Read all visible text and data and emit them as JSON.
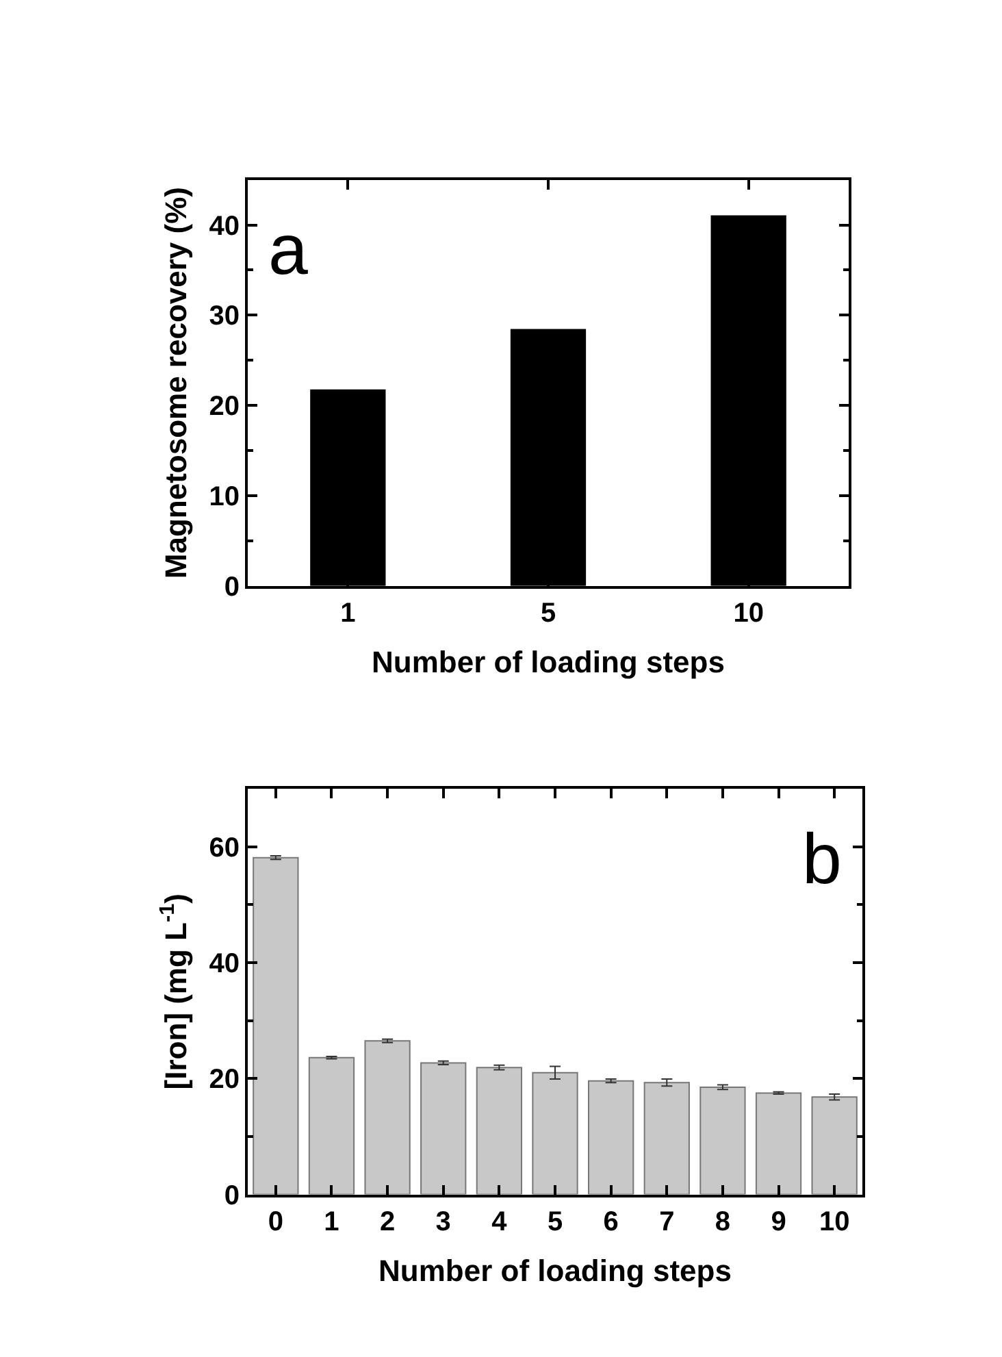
{
  "chart_data": [
    {
      "type": "bar",
      "categories": [
        "1",
        "5",
        "10"
      ],
      "xlabel": "Number of loading steps",
      "ylabel": "Magnetosome recovery (%)",
      "series": [
        {
          "color": "#000000",
          "values": [
            21.7,
            28.4,
            41.0
          ]
        }
      ],
      "ylim": [
        0,
        45
      ],
      "yticks": [
        0,
        10,
        20,
        30,
        40
      ],
      "annotations": [
        "a"
      ]
    },
    {
      "type": "bar",
      "categories": [
        "0",
        "1",
        "2",
        "3",
        "4",
        "5",
        "6",
        "7",
        "8",
        "9",
        "10"
      ],
      "xlabel": "Number of loading steps",
      "ylabel": "[Iron] (mg L$^{-1}$)",
      "series": [
        {
          "color": "#c8c8c8",
          "values": [
            58.1,
            23.6,
            26.5,
            22.7,
            21.9,
            21.0,
            19.6,
            19.3,
            18.5,
            17.5,
            16.8
          ],
          "errors": [
            0.3,
            0.2,
            0.3,
            0.3,
            0.4,
            1.1,
            0.3,
            0.6,
            0.4,
            0.2,
            0.5
          ]
        }
      ],
      "ylim": [
        0,
        70
      ],
      "yticks": [
        0,
        20,
        40,
        60
      ],
      "annotations": [
        "b"
      ]
    }
  ]
}
